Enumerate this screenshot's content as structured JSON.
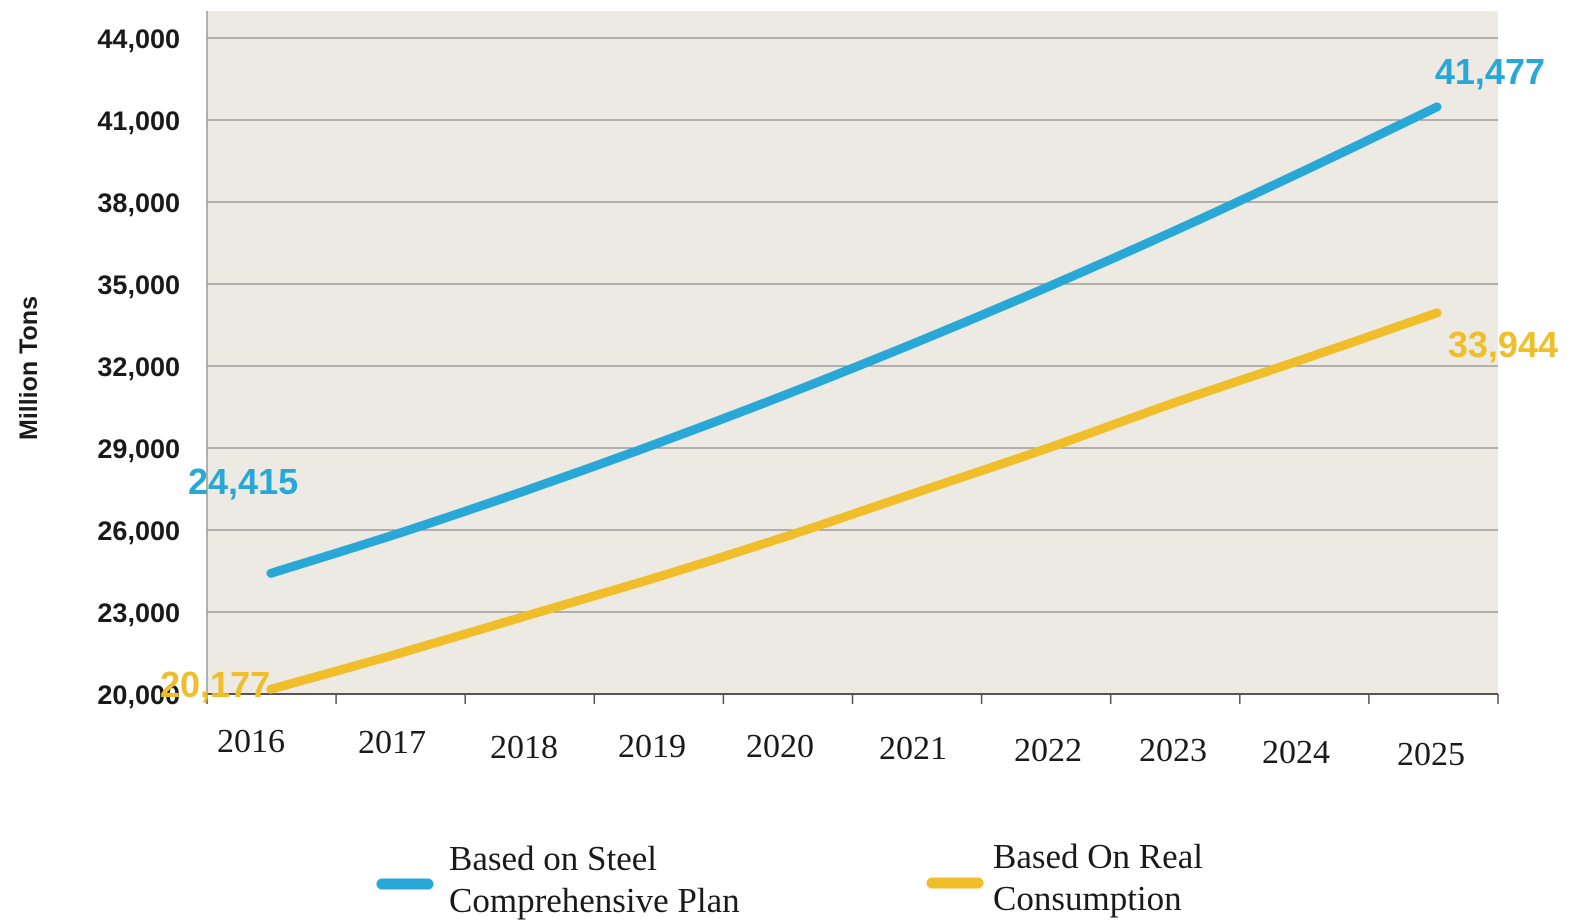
{
  "chart_data": {
    "type": "line",
    "title": "",
    "xlabel": "",
    "ylabel": "Million Tons",
    "categories": [
      "2016",
      "2017",
      "2018",
      "2019",
      "2020",
      "2021",
      "2022",
      "2023",
      "2024",
      "2025"
    ],
    "ylim": [
      20000,
      44000
    ],
    "yticks": [
      20000,
      23000,
      26000,
      29000,
      32000,
      35000,
      38000,
      41000,
      44000
    ],
    "ytick_labels": [
      "20,000",
      "23,000",
      "26,000",
      "29,000",
      "32,000",
      "35,000",
      "38,000",
      "41,000",
      "44,000"
    ],
    "grid": true,
    "legend_position": "bottom",
    "plot_background": "#edeae3",
    "series": [
      {
        "name": "Based on Steel Comprehensive Plan",
        "legend_lines": [
          "Based on Steel",
          "Comprehensive Plan"
        ],
        "color": "#29a8d8",
        "values": [
          24415,
          25900,
          27500,
          29200,
          31000,
          32900,
          34900,
          37000,
          39200,
          41477
        ],
        "start_label": "24,415",
        "end_label": "41,477"
      },
      {
        "name": "Based On Real Consumption",
        "legend_lines": [
          "Based On  Real",
          "Consumption"
        ],
        "color": "#f0be2a",
        "values": [
          20177,
          21500,
          22900,
          24300,
          25800,
          27400,
          29000,
          30700,
          32300,
          33944
        ],
        "start_label": "20,177",
        "end_label": "33,944"
      }
    ]
  }
}
